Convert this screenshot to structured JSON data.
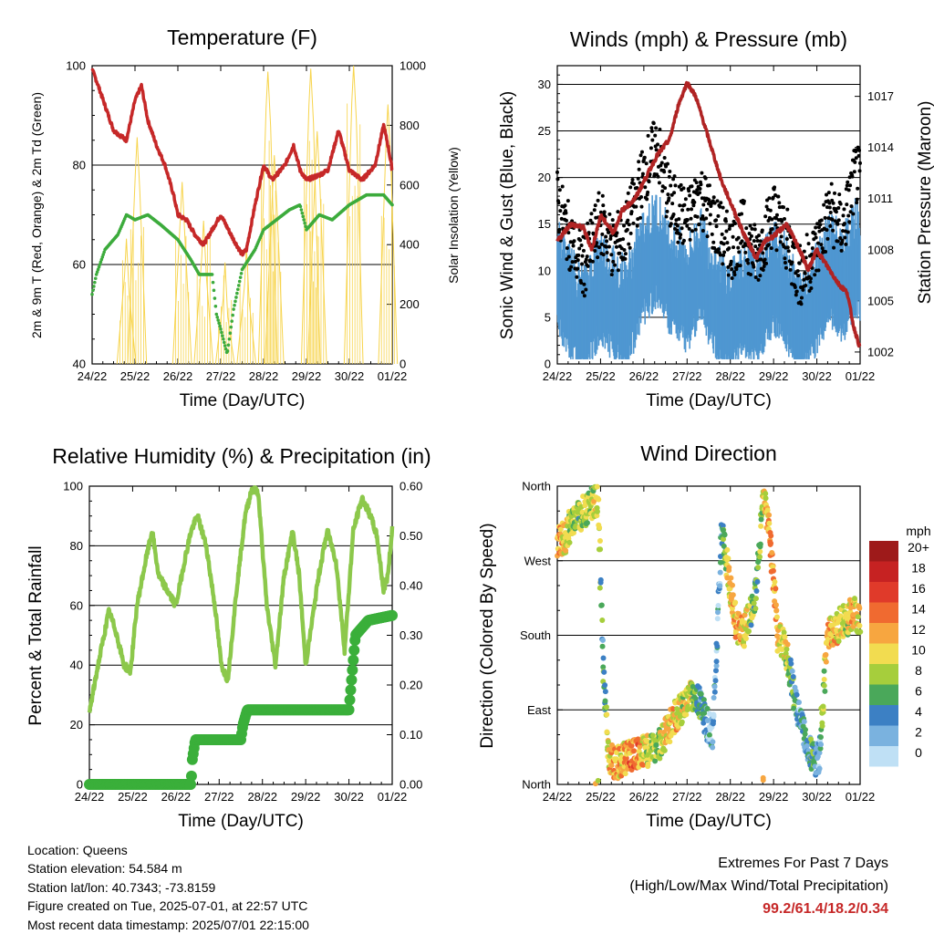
{
  "colors": {
    "temp": "#c62828",
    "dewpoint": "#3cab3c",
    "solar": "#f7d44c",
    "gust": "#000000",
    "wind": "#4f97d1",
    "pressure": "#b02323",
    "rh": "#8cc84b",
    "precip": "#3aaf3a",
    "extremes": "#c62828"
  },
  "info": {
    "location": "Location: Queens",
    "elevation": "Station elevation: 54.584 m",
    "latlon": "Station lat/lon: 40.7343; -73.8159",
    "created": "Figure created on Tue, 2025-07-01, at 22:57 UTC",
    "recent": "Most recent data timestamp: 2025/07/01 22:15:00"
  },
  "extremes": {
    "title": "Extremes For Past 7 Days",
    "subtitle": "(High/Low/Max Wind/Total Precipitation)",
    "values": "99.2/61.4/18.2/0.34"
  },
  "chart_data": [
    {
      "type": "line",
      "title": "Temperature (F)",
      "xlabel": "Time (Day/UTC)",
      "ylabel": "2m & 9m T (Red, Orange) & 2m Td (Green)",
      "y2label": "Solar Insolation (Yellow)",
      "x_ticks": [
        "24/22",
        "25/22",
        "26/22",
        "27/22",
        "28/22",
        "29/22",
        "30/22",
        "01/22"
      ],
      "ylim": [
        40,
        100
      ],
      "y_ticks": [
        40,
        60,
        80,
        100
      ],
      "y2lim": [
        0,
        1000
      ],
      "y2_ticks": [
        0,
        200,
        400,
        600,
        800,
        1000
      ],
      "grid": "horizontal",
      "series": [
        {
          "key": "temp",
          "axis": "left",
          "x": [
            0,
            0.1,
            0.3,
            0.5,
            0.8,
            1.0,
            1.15,
            1.3,
            1.5,
            1.7,
            1.9,
            2.0,
            2.2,
            2.4,
            2.6,
            2.8,
            3.0,
            3.3,
            3.5,
            3.6,
            3.8,
            4.0,
            4.2,
            4.5,
            4.7,
            4.85,
            5.0,
            5.3,
            5.5,
            5.75,
            6.0,
            6.3,
            6.6,
            6.8,
            6.9,
            7.0
          ],
          "values": [
            99.2,
            97,
            92,
            87,
            85,
            93,
            96,
            89,
            84,
            80,
            74,
            70,
            69,
            66,
            64,
            67,
            70,
            65,
            62,
            63,
            72,
            80,
            77,
            80,
            84,
            79,
            77,
            78,
            79,
            87,
            79,
            77,
            80,
            88,
            84,
            79
          ]
        },
        {
          "key": "dewpoint",
          "axis": "left",
          "x": [
            0,
            0.1,
            0.3,
            0.6,
            0.8,
            1.0,
            1.3,
            1.6,
            2.0,
            2.3,
            2.5,
            2.8,
            2.9,
            3.0,
            3.15,
            3.3,
            3.5,
            3.8,
            4.0,
            4.3,
            4.6,
            4.85,
            5.0,
            5.3,
            5.6,
            6.0,
            6.4,
            6.8,
            7.0
          ],
          "values": [
            54,
            58,
            63,
            66,
            70,
            69,
            70,
            68,
            65,
            61,
            58,
            58,
            50,
            47,
            42,
            51,
            59,
            63,
            67,
            69,
            71,
            72,
            67,
            70,
            69,
            72,
            74,
            74,
            72
          ]
        },
        {
          "key": "solar",
          "axis": "right",
          "peaks": [
            [
              1.05,
              760
            ],
            [
              0.8,
              420
            ],
            [
              2.1,
              610
            ],
            [
              2.6,
              480
            ],
            [
              3.1,
              340
            ],
            [
              3.6,
              390
            ],
            [
              4.1,
              980
            ],
            [
              4.25,
              700
            ],
            [
              5.1,
              990
            ],
            [
              5.25,
              780
            ],
            [
              6.1,
              1000
            ],
            [
              6.9,
              870
            ]
          ]
        }
      ]
    },
    {
      "type": "scatter",
      "title": "Winds (mph) & Pressure (mb)",
      "xlabel": "Time (Day/UTC)",
      "ylabel": "Sonic Wind & Gust (Blue, Black)",
      "y2label": "Station Pressure (Maroon)",
      "x_ticks": [
        "24/22",
        "25/22",
        "26/22",
        "27/22",
        "28/22",
        "29/22",
        "30/22",
        "01/22"
      ],
      "ylim": [
        0,
        32
      ],
      "y_ticks": [
        0,
        5,
        10,
        15,
        20,
        25,
        30
      ],
      "y2lim": [
        1001.3,
        1018.8
      ],
      "y2_ticks": [
        1002,
        1005,
        1008,
        1011,
        1014,
        1017
      ],
      "grid": "horizontal",
      "series": [
        {
          "key": "gust",
          "axis": "left",
          "x": [
            0,
            0.3,
            0.6,
            1.0,
            1.3,
            1.6,
            2.0,
            2.3,
            2.6,
            3.0,
            3.3,
            3.6,
            4.0,
            4.3,
            4.6,
            5.0,
            5.3,
            5.6,
            6.0,
            6.3,
            6.6,
            6.9,
            7.0
          ],
          "values": [
            17,
            13,
            10,
            15,
            12,
            14,
            20,
            23,
            17,
            15,
            18,
            15,
            12,
            14,
            11,
            16,
            13,
            9,
            12,
            16,
            14,
            20,
            19
          ]
        },
        {
          "key": "wind",
          "axis": "left",
          "x": [
            0,
            0.3,
            0.6,
            1.0,
            1.3,
            1.6,
            2.0,
            2.3,
            2.6,
            3.0,
            3.3,
            3.6,
            4.0,
            4.3,
            4.6,
            5.0,
            5.3,
            5.6,
            6.0,
            6.3,
            6.6,
            6.9,
            7.0
          ],
          "values": [
            9,
            6,
            4,
            8,
            6,
            5,
            10,
            12,
            9,
            7,
            10,
            7,
            4,
            7,
            5,
            9,
            7,
            3,
            7,
            10,
            8,
            11,
            10
          ]
        },
        {
          "key": "pressure",
          "axis": "right",
          "x": [
            0,
            0.3,
            0.6,
            0.8,
            1.0,
            1.3,
            1.5,
            1.8,
            2.0,
            2.3,
            2.6,
            2.8,
            3.0,
            3.2,
            3.5,
            3.8,
            4.0,
            4.3,
            4.6,
            4.8,
            5.0,
            5.3,
            5.6,
            5.8,
            6.0,
            6.2,
            6.5,
            6.7,
            6.85,
            7.0
          ],
          "values": [
            1008.5,
            1009.5,
            1009.3,
            1008,
            1010,
            1009,
            1010.3,
            1011,
            1012,
            1013.5,
            1014.5,
            1016.5,
            1017.8,
            1017,
            1014.5,
            1012,
            1010.8,
            1009,
            1007.5,
            1008.5,
            1008.8,
            1009.5,
            1008,
            1006.8,
            1008,
            1007.2,
            1006,
            1005.5,
            1003.5,
            1002.2
          ]
        }
      ]
    },
    {
      "type": "line",
      "title": "Relative Humidity (%) & Precipitation (in)",
      "xlabel": "Time (Day/UTC)",
      "ylabel": "Percent & Total Rainfall",
      "x_ticks": [
        "24/22",
        "25/22",
        "26/22",
        "27/22",
        "28/22",
        "29/22",
        "30/22",
        "01/22"
      ],
      "ylim": [
        0,
        100
      ],
      "y_ticks": [
        0,
        20,
        40,
        60,
        80,
        100
      ],
      "y2lim": [
        0,
        0.6
      ],
      "y2_ticks": [
        "0.00",
        "0.10",
        "0.20",
        "0.30",
        "0.40",
        "0.50",
        "0.60"
      ],
      "grid": "horizontal",
      "series": [
        {
          "key": "rh",
          "axis": "left",
          "x": [
            0,
            0.2,
            0.45,
            0.6,
            0.8,
            0.95,
            1.1,
            1.3,
            1.45,
            1.6,
            1.8,
            2.0,
            2.2,
            2.35,
            2.5,
            2.7,
            2.9,
            3.05,
            3.2,
            3.4,
            3.6,
            3.75,
            3.9,
            4.1,
            4.3,
            4.5,
            4.7,
            4.85,
            5.0,
            5.3,
            5.5,
            5.7,
            5.9,
            6.1,
            6.3,
            6.5,
            6.65,
            6.8,
            6.9,
            7.0
          ],
          "values": [
            24,
            40,
            58,
            52,
            40,
            38,
            60,
            75,
            85,
            70,
            65,
            60,
            75,
            85,
            90,
            80,
            60,
            40,
            35,
            65,
            90,
            99,
            98,
            60,
            40,
            70,
            85,
            70,
            40,
            70,
            85,
            75,
            45,
            85,
            96,
            90,
            83,
            65,
            70,
            86
          ]
        },
        {
          "key": "precip",
          "axis": "right",
          "x": [
            0,
            2.35,
            2.38,
            2.45,
            3.5,
            3.55,
            3.65,
            6.0,
            6.05,
            6.15,
            6.45,
            7.0
          ],
          "values": [
            0,
            0,
            0.05,
            0.09,
            0.09,
            0.12,
            0.15,
            0.15,
            0.2,
            0.3,
            0.33,
            0.34
          ]
        }
      ]
    },
    {
      "type": "scatter",
      "title": "Wind Direction",
      "xlabel": "Time (Day/UTC)",
      "ylabel": "Direction (Colored By Speed)",
      "x_ticks": [
        "24/22",
        "25/22",
        "26/22",
        "27/22",
        "28/22",
        "29/22",
        "30/22",
        "01/22"
      ],
      "y_ticks": [
        "North",
        "East",
        "South",
        "West",
        "North"
      ],
      "ylim": [
        0,
        360
      ],
      "grid": "horizontal",
      "legend": {
        "title": "mph",
        "labels": [
          "20+",
          "18",
          "16",
          "14",
          "12",
          "10",
          "8",
          "6",
          "4",
          "2",
          "0"
        ],
        "colors": [
          "#9e1a1a",
          "#c62222",
          "#e03a2a",
          "#f06a30",
          "#f7a640",
          "#f2dc50",
          "#a6ce3c",
          "#4aa85a",
          "#3c80c4",
          "#7ab2df",
          "#bfe0f5"
        ]
      },
      "series": [
        {
          "name": "direction",
          "x": [
            0.05,
            0.2,
            0.35,
            0.5,
            0.65,
            0.8,
            0.95,
            1.05,
            1.2,
            1.35,
            1.5,
            1.7,
            1.9,
            2.1,
            2.3,
            2.5,
            2.7,
            2.9,
            3.05,
            3.2,
            3.4,
            3.6,
            3.8,
            3.95,
            4.15,
            4.3,
            4.45,
            4.6,
            4.75,
            4.9,
            5.1,
            5.3,
            5.5,
            5.7,
            5.9,
            6.05,
            6.25,
            6.4,
            6.55,
            6.7,
            6.85,
            6.95
          ],
          "values": [
            295,
            300,
            320,
            325,
            330,
            340,
            345,
            150,
            30,
            25,
            30,
            35,
            40,
            40,
            45,
            60,
            80,
            95,
            105,
            110,
            80,
            60,
            310,
            255,
            190,
            180,
            205,
            230,
            350,
            310,
            180,
            160,
            100,
            60,
            30,
            30,
            180,
            185,
            195,
            200,
            210,
            195
          ]
        },
        {
          "name": "speed_mph",
          "values": [
            12,
            10,
            8,
            7,
            8,
            9,
            10,
            4,
            10,
            12,
            11,
            13,
            12,
            9,
            8,
            10,
            11,
            9,
            10,
            6,
            4,
            2,
            4,
            10,
            12,
            11,
            8,
            6,
            9,
            12,
            11,
            9,
            4,
            3,
            6,
            2,
            12,
            11,
            10,
            9,
            12,
            10
          ]
        }
      ]
    }
  ]
}
